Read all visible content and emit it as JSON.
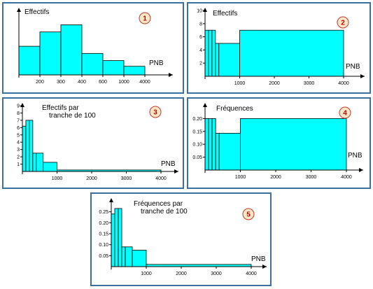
{
  "chart_data": [
    {
      "type": "bar",
      "number": "1",
      "x_scale": "ordinal",
      "categories": [
        "0-200",
        "200-300",
        "300-400",
        "400-600",
        "600-1000",
        "1000-4000"
      ],
      "edges_labels": [
        "200",
        "300",
        "400",
        "600",
        "1000",
        "4000"
      ],
      "values": [
        4,
        6,
        7,
        3,
        2,
        1.2
      ],
      "ylim": [
        0,
        9
      ],
      "ylabel": "Effectifs",
      "xlabel": "PNB",
      "y_ticks": [],
      "grid": false
    },
    {
      "type": "bar",
      "number": "2",
      "x_scale": "linear",
      "bins": [
        [
          0,
          100
        ],
        [
          100,
          200
        ],
        [
          200,
          300
        ],
        [
          300,
          400
        ],
        [
          400,
          1000
        ],
        [
          1000,
          4000
        ]
      ],
      "values": [
        7,
        7,
        7,
        5,
        5,
        7
      ],
      "xlim": [
        0,
        4000
      ],
      "ylim": [
        0,
        10
      ],
      "x_ticks": [
        1000,
        2000,
        3000,
        4000
      ],
      "y_ticks": [
        2,
        4,
        6,
        8,
        10
      ],
      "ylabel": "Effectifs",
      "xlabel": "PNB",
      "grid": false
    },
    {
      "type": "bar",
      "number": "3",
      "x_scale": "linear",
      "bins": [
        [
          0,
          100
        ],
        [
          100,
          200
        ],
        [
          200,
          300
        ],
        [
          300,
          400
        ],
        [
          400,
          600
        ],
        [
          600,
          1000
        ],
        [
          1000,
          4000
        ]
      ],
      "values": [
        6.2,
        7,
        7,
        2.5,
        2.5,
        1.25,
        0.2
      ],
      "xlim": [
        0,
        4000
      ],
      "ylim": [
        0,
        9
      ],
      "x_ticks": [
        1000,
        2000,
        3000,
        4000
      ],
      "y_ticks": [
        1,
        2,
        3,
        4,
        5,
        6,
        7,
        8,
        9
      ],
      "ylabel": "Effectifs par tranche de 100",
      "ylabel_lines": [
        "Effectifs par",
        "tranche de 100"
      ],
      "xlabel": "PNB",
      "grid": false
    },
    {
      "type": "bar",
      "number": "4",
      "x_scale": "linear",
      "bins": [
        [
          0,
          100
        ],
        [
          100,
          200
        ],
        [
          200,
          300
        ],
        [
          300,
          400
        ],
        [
          400,
          1000
        ],
        [
          1000,
          4000
        ]
      ],
      "values": [
        0.2,
        0.2,
        0.2,
        0.143,
        0.143,
        0.2
      ],
      "xlim": [
        0,
        4000
      ],
      "ylim": [
        0,
        0.25
      ],
      "x_ticks": [
        1000,
        2000,
        3000,
        4000
      ],
      "y_ticks": [
        "0.05",
        "0.10",
        "0.15",
        "0.20"
      ],
      "ylabel": "Fréquences",
      "xlabel": "PNB",
      "grid": false
    },
    {
      "type": "bar",
      "number": "5",
      "x_scale": "linear",
      "bins": [
        [
          0,
          100
        ],
        [
          100,
          200
        ],
        [
          200,
          300
        ],
        [
          300,
          400
        ],
        [
          400,
          600
        ],
        [
          600,
          1000
        ],
        [
          1000,
          4000
        ]
      ],
      "values": [
        0.24,
        0.265,
        0.265,
        0.09,
        0.09,
        0.075,
        0.01
      ],
      "xlim": [
        0,
        4000
      ],
      "ylim": [
        0,
        0.3
      ],
      "x_ticks": [
        1000,
        2000,
        3000,
        4000
      ],
      "y_ticks": [
        "0.05",
        "0.10",
        "0.15",
        "0.20",
        "0.25"
      ],
      "ylabel": "Fréquences par tranche de 100",
      "ylabel_lines": [
        "Fréquences par",
        "tranche de 100"
      ],
      "xlabel": "PNB",
      "grid": false
    }
  ]
}
